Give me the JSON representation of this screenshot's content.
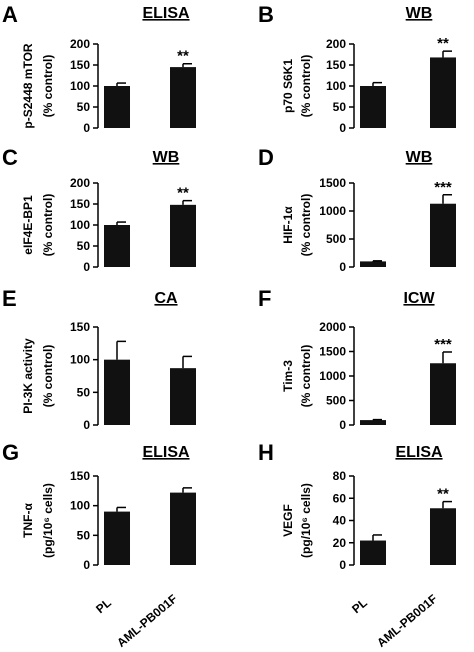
{
  "categories": [
    "PL",
    "AML-PB001F"
  ],
  "chart_data": [
    {
      "panel": "A",
      "title": "ELISA",
      "type": "bar",
      "ylabel": [
        "p-S2448 mTOR",
        "(% control)"
      ],
      "ylim": [
        0,
        200
      ],
      "yticks": [
        "0",
        "50",
        "100",
        "150",
        "200"
      ],
      "yticks_num": [
        0,
        50,
        100,
        150,
        200
      ],
      "values": [
        100,
        145
      ],
      "errors": [
        7,
        8
      ],
      "annotations": [
        "",
        "**"
      ]
    },
    {
      "panel": "B",
      "title": "WB",
      "type": "bar",
      "ylabel": [
        "p70 S6K1",
        "(% control)"
      ],
      "ylim": [
        0,
        200
      ],
      "yticks": [
        "0",
        "50",
        "100",
        "150",
        "200"
      ],
      "yticks_num": [
        0,
        50,
        100,
        150,
        200
      ],
      "values": [
        100,
        168
      ],
      "errors": [
        8,
        15
      ],
      "annotations": [
        "",
        "**"
      ]
    },
    {
      "panel": "C",
      "title": "WB",
      "type": "bar",
      "ylabel": [
        "eIF4E-BP1",
        "(% control)"
      ],
      "ylim": [
        0,
        200
      ],
      "yticks": [
        "0",
        "50",
        "100",
        "150",
        "200"
      ],
      "yticks_num": [
        0,
        50,
        100,
        150,
        200
      ],
      "values": [
        100,
        148
      ],
      "errors": [
        7,
        10
      ],
      "annotations": [
        "",
        "**"
      ]
    },
    {
      "panel": "D",
      "title": "WB",
      "type": "bar",
      "ylabel": [
        "HIF-1α",
        "(% control)"
      ],
      "ylim": [
        0,
        1500
      ],
      "yticks": [
        "0",
        "500",
        "1000",
        "1500"
      ],
      "yticks_num": [
        0,
        500,
        1000,
        1500
      ],
      "values": [
        100,
        1130
      ],
      "errors": [
        10,
        160
      ],
      "annotations": [
        "",
        "***"
      ]
    },
    {
      "panel": "E",
      "title": "CA",
      "type": "bar",
      "ylabel": [
        "PI-3K activity",
        "(% control)"
      ],
      "ylim": [
        0,
        150
      ],
      "yticks": [
        "0",
        "50",
        "100",
        "150"
      ],
      "yticks_num": [
        0,
        50,
        100,
        150
      ],
      "values": [
        100,
        87
      ],
      "errors": [
        28,
        18
      ],
      "annotations": [
        "",
        ""
      ]
    },
    {
      "panel": "F",
      "title": "ICW",
      "type": "bar",
      "ylabel": [
        "Tim-3",
        "(% control)"
      ],
      "ylim": [
        0,
        2000
      ],
      "yticks": [
        "0",
        "500",
        "1000",
        "1500",
        "2000"
      ],
      "yticks_num": [
        0,
        500,
        1000,
        1500,
        2000
      ],
      "values": [
        100,
        1260
      ],
      "errors": [
        10,
        230
      ],
      "annotations": [
        "",
        "***"
      ]
    },
    {
      "panel": "G",
      "title": "ELISA",
      "type": "bar",
      "ylabel": [
        "TNF-α",
        "(pg/10⁶ cells)"
      ],
      "ylim": [
        0,
        150
      ],
      "yticks": [
        "0",
        "50",
        "100",
        "150"
      ],
      "yticks_num": [
        0,
        50,
        100,
        150
      ],
      "values": [
        90,
        122
      ],
      "errors": [
        7,
        8
      ],
      "annotations": [
        "",
        ""
      ]
    },
    {
      "panel": "H",
      "title": "ELISA",
      "type": "bar",
      "ylabel": [
        "VEGF",
        "(pg/10⁶ cells)"
      ],
      "ylim": [
        0,
        80
      ],
      "yticks": [
        "0",
        "20",
        "40",
        "60",
        "80"
      ],
      "yticks_num": [
        0,
        20,
        40,
        60,
        80
      ],
      "values": [
        22,
        51
      ],
      "errors": [
        5,
        6
      ],
      "annotations": [
        "",
        "**"
      ]
    }
  ],
  "colors": {
    "bar": "#111111",
    "axis": "#000000",
    "background": "#ffffff"
  }
}
